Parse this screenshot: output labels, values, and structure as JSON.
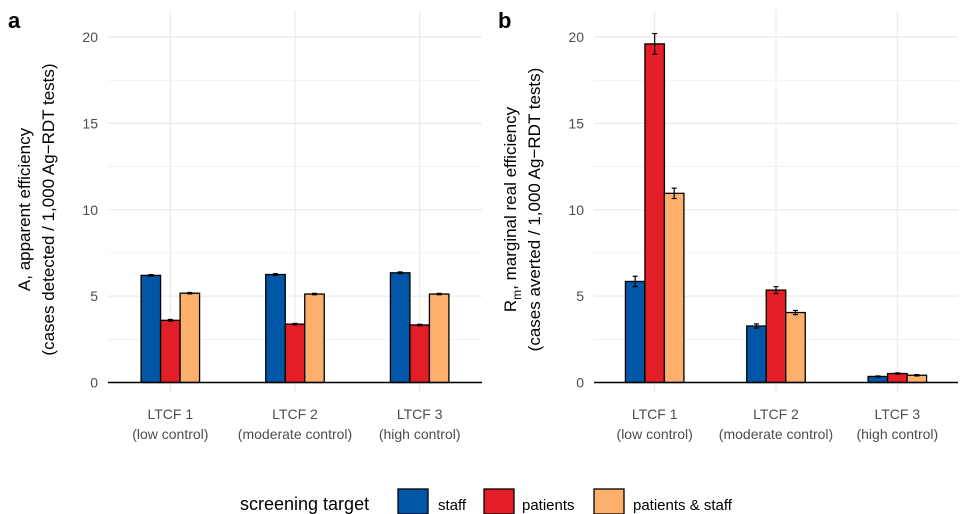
{
  "colors": {
    "staff": "#0057a8",
    "patients": "#e41e26",
    "patients_staff": "#fdb06b",
    "grid": "#ebebeb",
    "tick": "#4d4d4d"
  },
  "legend": {
    "title": "screening target",
    "entries": [
      {
        "key": "staff",
        "label": "staff"
      },
      {
        "key": "patients",
        "label": "patients"
      },
      {
        "key": "patients_staff",
        "label": "patients & staff"
      }
    ]
  },
  "chart_data": [
    {
      "type": "bar",
      "panel": "a",
      "ylabel_line1": "A, apparent efficiency",
      "ylabel_line2": "(cases detected / 1,000 Ag−RDT tests)",
      "ylim": [
        0,
        21
      ],
      "yticks": [
        0,
        5,
        10,
        15,
        20
      ],
      "grid": true,
      "categories": [
        {
          "line1": "LTCF 1",
          "line2": "(low control)"
        },
        {
          "line1": "LTCF 2",
          "line2": "(moderate control)"
        },
        {
          "line1": "LTCF 3",
          "line2": "(high control)"
        }
      ],
      "series": [
        {
          "key": "staff",
          "name": "staff",
          "values": [
            6.2,
            6.25,
            6.35
          ],
          "err": [
            0.05,
            0.05,
            0.05
          ]
        },
        {
          "key": "patients",
          "name": "patients",
          "values": [
            3.6,
            3.38,
            3.33
          ],
          "err": [
            0.05,
            0.04,
            0.04
          ]
        },
        {
          "key": "patients_staff",
          "name": "patients & staff",
          "values": [
            5.17,
            5.12,
            5.12
          ],
          "err": [
            0.04,
            0.04,
            0.04
          ]
        }
      ]
    },
    {
      "type": "bar",
      "panel": "b",
      "ylabel_line1": "R",
      "ylabel_sub": "m",
      "ylabel_line1_rest": ", marginal real efficiency",
      "ylabel_line2": "(cases averted / 1,000 Ag−RDT tests)",
      "ylim": [
        0,
        21
      ],
      "yticks": [
        0,
        5,
        10,
        15,
        20
      ],
      "grid": true,
      "categories": [
        {
          "line1": "LTCF 1",
          "line2": "(low control)"
        },
        {
          "line1": "LTCF 2",
          "line2": "(moderate control)"
        },
        {
          "line1": "LTCF 3",
          "line2": "(high control)"
        }
      ],
      "series": [
        {
          "key": "staff",
          "name": "staff",
          "values": [
            5.85,
            3.27,
            0.35
          ],
          "err": [
            0.3,
            0.12,
            0.03
          ]
        },
        {
          "key": "patients",
          "name": "patients",
          "values": [
            19.6,
            5.35,
            0.52
          ],
          "err": [
            0.6,
            0.2,
            0.04
          ]
        },
        {
          "key": "patients_staff",
          "name": "patients & staff",
          "values": [
            10.95,
            4.05,
            0.42
          ],
          "err": [
            0.3,
            0.12,
            0.04
          ]
        }
      ]
    }
  ]
}
